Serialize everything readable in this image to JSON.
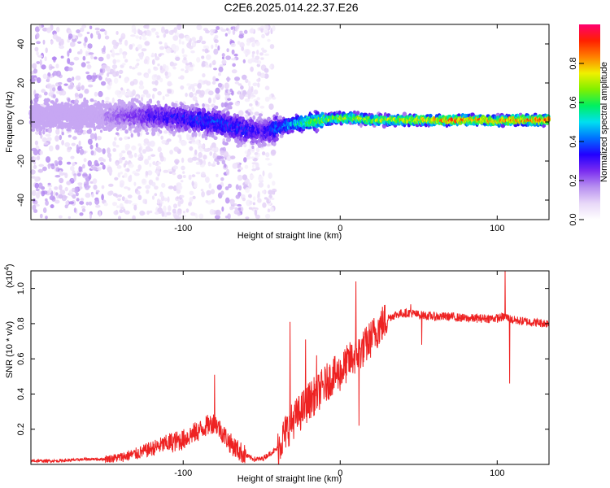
{
  "title": "C2E6.2025.014.22.37.E26",
  "colors": {
    "snr_line": "#ee2222",
    "frame": "#000000",
    "colormap": [
      "#ffffff",
      "#e8d8f8",
      "#b890f0",
      "#7a2cf0",
      "#2200ff",
      "#0070ff",
      "#00e0f0",
      "#00f060",
      "#80f000",
      "#f0f000",
      "#ff8000",
      "#ff2000",
      "#ff0070"
    ]
  },
  "chart_data": [
    {
      "type": "heatmap",
      "title": "",
      "xlabel": "Height of straight line (km)",
      "ylabel": "Frequency (Hz)",
      "xlim": [
        -197,
        133
      ],
      "ylim": [
        -50,
        50
      ],
      "x_ticks": [
        -100,
        0,
        100
      ],
      "x_tick_labels": [
        "-100",
        "0",
        "100"
      ],
      "y_ticks": [
        -40,
        -20,
        0,
        20,
        40
      ],
      "y_tick_labels": [
        "-40",
        "-20",
        "0",
        "20",
        "40"
      ],
      "colorbar": {
        "label": "Normalized spectral amplitude",
        "range": [
          0,
          1
        ],
        "ticks": [
          0.0,
          0.2,
          0.4,
          0.6,
          0.8
        ],
        "tick_labels": [
          "0.0",
          "0.2",
          "0.4",
          "0.6",
          "0.8"
        ]
      },
      "ridge": {
        "x": [
          -197,
          -150,
          -120,
          -100,
          -80,
          -60,
          -50,
          -40,
          -30,
          -20,
          -10,
          0,
          10,
          20,
          50,
          75,
          90,
          100,
          110,
          133
        ],
        "freq": [
          3,
          3,
          3,
          2,
          0,
          -4,
          -5,
          -3,
          -1,
          0,
          1,
          2,
          2,
          1,
          1,
          1,
          1,
          0.5,
          1,
          1
        ],
        "amplitude": [
          0.12,
          0.18,
          0.3,
          0.35,
          0.38,
          0.35,
          0.3,
          0.4,
          0.5,
          0.62,
          0.68,
          0.7,
          0.7,
          0.72,
          0.75,
          0.9,
          0.82,
          0.78,
          0.85,
          0.88
        ]
      },
      "scatter_note": "broadband low-amplitude energy for heights below -45 km"
    },
    {
      "type": "line",
      "title": "",
      "xlabel": "Height of straight line (km)",
      "ylabel": "SNR (10 * v/v)",
      "y_multiplier": "(x10",
      "y_multiplier_exp": "4",
      "xlim": [
        -197,
        133
      ],
      "ylim": [
        0,
        1.1
      ],
      "x_ticks": [
        -100,
        0,
        100
      ],
      "x_tick_labels": [
        "-100",
        "0",
        "100"
      ],
      "y_ticks": [
        0.2,
        0.4,
        0.6,
        0.8,
        1.0
      ],
      "y_tick_labels": [
        "0.2",
        "0.4",
        "0.6",
        "0.8",
        "1.0"
      ],
      "series": [
        {
          "color": "#ee2222",
          "x": [
            -197,
            -180,
            -160,
            -150,
            -140,
            -130,
            -120,
            -110,
            -100,
            -95,
            -90,
            -85,
            -80,
            -75,
            -70,
            -65,
            -60,
            -55,
            -50,
            -45,
            -40,
            -35,
            -30,
            -25,
            -20,
            -15,
            -10,
            -5,
            0,
            5,
            10,
            15,
            20,
            25,
            30,
            35,
            40,
            45,
            50,
            60,
            70,
            80,
            90,
            100,
            105,
            110,
            120,
            133
          ],
          "y": [
            0.02,
            0.02,
            0.03,
            0.03,
            0.04,
            0.06,
            0.09,
            0.12,
            0.14,
            0.17,
            0.19,
            0.22,
            0.24,
            0.18,
            0.12,
            0.08,
            0.05,
            0.03,
            0.03,
            0.06,
            0.09,
            0.18,
            0.25,
            0.3,
            0.36,
            0.4,
            0.45,
            0.5,
            0.52,
            0.58,
            0.62,
            0.66,
            0.72,
            0.78,
            0.83,
            0.85,
            0.86,
            0.86,
            0.85,
            0.84,
            0.84,
            0.83,
            0.83,
            0.83,
            0.84,
            0.82,
            0.81,
            0.8
          ]
        }
      ],
      "spikes": [
        {
          "x": -80,
          "y": 0.51
        },
        {
          "x": -50,
          "y": 0.03
        },
        {
          "x": -32,
          "y": 0.81
        },
        {
          "x": -22,
          "y": 0.71
        },
        {
          "x": -15,
          "y": 0.62
        },
        {
          "x": 10,
          "y": 1.04
        },
        {
          "x": 12,
          "y": 0.22
        },
        {
          "x": 45,
          "y": 0.91
        },
        {
          "x": 52,
          "y": 0.68
        },
        {
          "x": 105,
          "y": 1.1
        },
        {
          "x": 108,
          "y": 0.46
        }
      ]
    }
  ]
}
